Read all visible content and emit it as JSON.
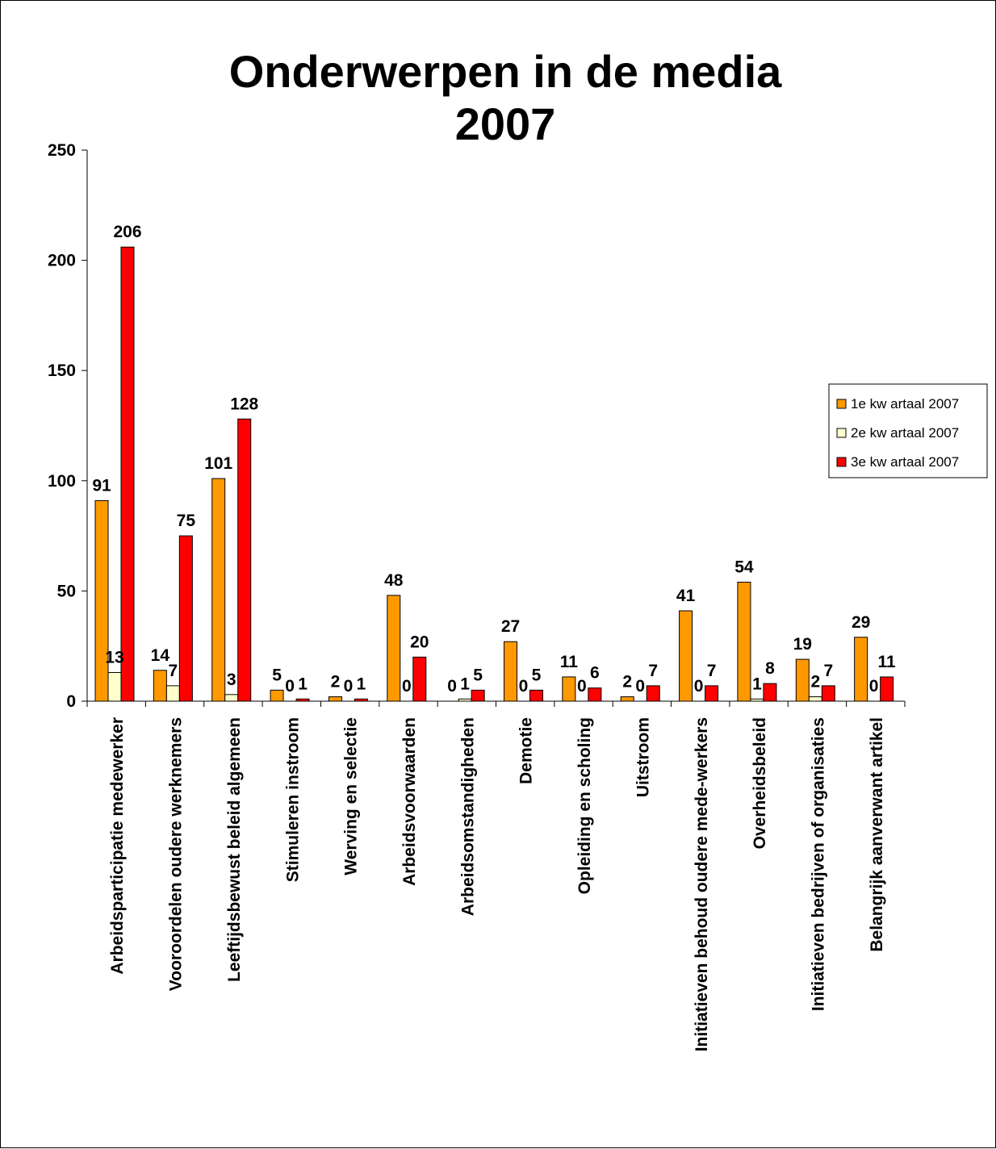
{
  "chart_data": {
    "type": "bar",
    "title": "Onderwerpen in de media",
    "subtitle": "2007",
    "xlabel": "",
    "ylabel": "",
    "ylim": [
      0,
      250
    ],
    "yticks": [
      0,
      50,
      100,
      150,
      200,
      250
    ],
    "grid": false,
    "legend_position": "right",
    "categories": [
      "Arbeidsparticipatie medewerker",
      "Vooroordelen oudere werknemers",
      "Leeftijdsbewust beleid algemeen",
      "Stimuleren instroom",
      "Werving en selectie",
      "Arbeidsvoorwaarden",
      "Arbeidsomstandigheden",
      "Demotie",
      "Opleiding en scholing",
      "Uitstroom",
      "Initiatieven behoud oudere mede-werkers",
      "Overheidsbeleid",
      "Initiatieven bedrijven of organisaties",
      "Belangrijk aanverwant artikel"
    ],
    "series": [
      {
        "name": "1e kw artaal 2007",
        "color": "#FF9900",
        "values": [
          91,
          14,
          101,
          5,
          2,
          48,
          0,
          27,
          11,
          2,
          41,
          54,
          19,
          29
        ]
      },
      {
        "name": "2e kw artaal 2007",
        "color": "#FFFFCC",
        "values": [
          13,
          7,
          3,
          0,
          0,
          0,
          1,
          0,
          0,
          0,
          0,
          1,
          2,
          0
        ]
      },
      {
        "name": "3e kw artaal 2007",
        "color": "#FF0000",
        "values": [
          206,
          75,
          128,
          1,
          1,
          20,
          5,
          5,
          6,
          7,
          7,
          8,
          7,
          11
        ]
      }
    ]
  }
}
